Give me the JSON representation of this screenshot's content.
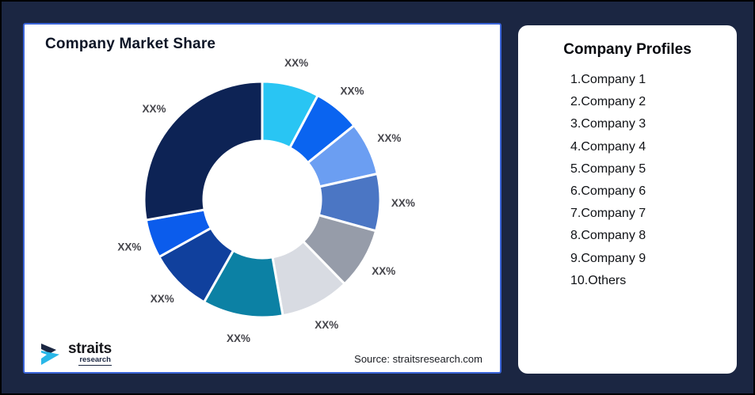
{
  "canvas": {
    "background": "#1B2642",
    "border": "#000000"
  },
  "chart_card": {
    "title": "Company Market Share",
    "source_note": "Source: straitsresearch.com",
    "border_color": "#3A64D8"
  },
  "logo": {
    "brand": "straits",
    "brand_sub": "research"
  },
  "profiles_card": {
    "title": "Company Profiles",
    "items": [
      "1.Company 1",
      "2.Company 2",
      "3.Company 3",
      "4.Company 4",
      "5.Company 5",
      "6.Company 6",
      "7.Company 7",
      "8.Company 8",
      "9.Company 9",
      "10.Others"
    ]
  },
  "chart_data": {
    "type": "pie",
    "subtype": "donut",
    "title": "Company Market Share",
    "value_labels_masked": "XX%",
    "start_angle_deg": 0,
    "direction": "clockwise",
    "inner_radius_ratio": 0.5,
    "legend": "none",
    "slices": [
      {
        "label": "XX%",
        "approx_share_pct": 7.8,
        "color": "#29C5F3"
      },
      {
        "label": "XX%",
        "approx_share_pct": 6.4,
        "color": "#0A64F0"
      },
      {
        "label": "XX%",
        "approx_share_pct": 7.3,
        "color": "#6B9EF2"
      },
      {
        "label": "XX%",
        "approx_share_pct": 7.8,
        "color": "#4B76C4"
      },
      {
        "label": "XX%",
        "approx_share_pct": 8.4,
        "color": "#969CA9"
      },
      {
        "label": "XX%",
        "approx_share_pct": 9.5,
        "color": "#D8DBE2"
      },
      {
        "label": "XX%",
        "approx_share_pct": 11.0,
        "color": "#0C81A4"
      },
      {
        "label": "XX%",
        "approx_share_pct": 8.7,
        "color": "#10409D"
      },
      {
        "label": "XX%",
        "approx_share_pct": 5.3,
        "color": "#0B5CEC"
      },
      {
        "label": "XX%",
        "approx_share_pct": 27.8,
        "color": "#0D2355"
      }
    ]
  }
}
